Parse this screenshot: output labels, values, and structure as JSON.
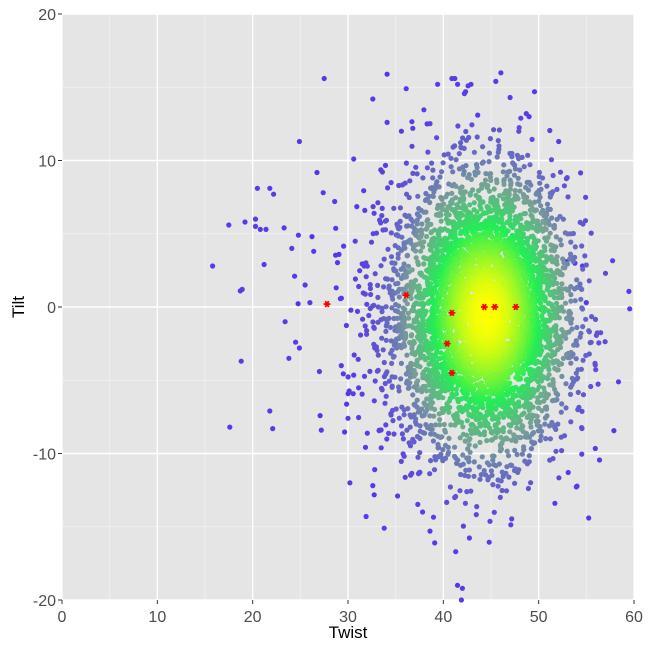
{
  "chart_data": {
    "type": "scatter",
    "title": "",
    "xlabel": "Twist",
    "ylabel": "Tilt",
    "xlim": [
      0,
      60
    ],
    "ylim": [
      -20,
      20
    ],
    "x_ticks": [
      0,
      10,
      20,
      30,
      40,
      50,
      60
    ],
    "y_ticks": [
      -20,
      -10,
      0,
      10,
      20
    ],
    "grid": true,
    "legend": "none",
    "colors": {
      "panel_background": "#e5e5e5",
      "grid_major": "#ffffff",
      "grid_minor": "#f2f2f2",
      "density_low": "#5533ee",
      "density_mid": "#22ee55",
      "density_high": "#ffff00",
      "highlight": "#ff0000"
    },
    "distribution": {
      "x_center": 44.5,
      "x_spread": 4.2,
      "y_center": -0.5,
      "y_spread": 4.6,
      "point_count": 5000,
      "note_color_by_density": true
    },
    "outlier_points": [
      [
        15.8,
        2.8
      ],
      [
        17.5,
        5.6
      ],
      [
        17.6,
        -8.2
      ],
      [
        18.7,
        1.1
      ],
      [
        18.9,
        1.2
      ],
      [
        18.8,
        -3.7
      ],
      [
        19.2,
        5.8
      ],
      [
        20.3,
        5.5
      ],
      [
        20.3,
        6.0
      ],
      [
        20.5,
        8.1
      ],
      [
        20.8,
        5.3
      ],
      [
        21.2,
        2.9
      ],
      [
        21.4,
        5.3
      ],
      [
        21.8,
        8.1
      ],
      [
        22.2,
        7.7
      ],
      [
        21.8,
        -7.1
      ],
      [
        22.1,
        -8.3
      ],
      [
        23.3,
        5.4
      ],
      [
        23.4,
        -1.0
      ],
      [
        23.8,
        -3.5
      ],
      [
        24.1,
        4.0
      ],
      [
        24.4,
        2.1
      ],
      [
        24.5,
        -2.4
      ],
      [
        24.9,
        -2.8
      ],
      [
        24.8,
        4.9
      ],
      [
        24.9,
        11.3
      ],
      [
        25.5,
        1.5
      ],
      [
        26.0,
        0.3
      ],
      [
        26.4,
        3.8
      ],
      [
        27.0,
        -4.4
      ],
      [
        27.2,
        -8.4
      ],
      [
        27.4,
        7.8
      ],
      [
        27.5,
        15.6
      ],
      [
        28.6,
        7.2
      ],
      [
        29.3,
        -4.0
      ],
      [
        30.0,
        -7.6
      ],
      [
        30.2,
        -12.0
      ],
      [
        30.6,
        10.1
      ],
      [
        31.9,
        -14.3
      ],
      [
        32.6,
        14.2
      ],
      [
        32.8,
        -11.1
      ],
      [
        33.8,
        -15.1
      ],
      [
        34.1,
        12.6
      ],
      [
        35.2,
        -12.9
      ],
      [
        35.6,
        12.0
      ],
      [
        36.1,
        14.9
      ],
      [
        36.8,
        12.2
      ],
      [
        38.3,
        12.5
      ],
      [
        38.6,
        -15.3
      ],
      [
        39.4,
        15.2
      ],
      [
        40.9,
        15.6
      ],
      [
        41.2,
        15.6
      ],
      [
        41.5,
        15.2
      ],
      [
        41.3,
        -16.7
      ],
      [
        42.0,
        -19.2
      ],
      [
        41.9,
        -20.0
      ],
      [
        42.6,
        15.1
      ],
      [
        42.9,
        15.2
      ],
      [
        43.6,
        13.1
      ],
      [
        45.5,
        15.4
      ],
      [
        47.0,
        14.3
      ],
      [
        48.7,
        13.2
      ],
      [
        49.0,
        13.0
      ],
      [
        52.1,
        11.3
      ],
      [
        52.9,
        3.1
      ],
      [
        53.8,
        3.0
      ],
      [
        54.6,
        2.8
      ],
      [
        55.0,
        0.3
      ],
      [
        53.1,
        -11.3
      ],
      [
        51.7,
        -13.4
      ]
    ],
    "series": [
      {
        "x": [
          27.8,
          36.1,
          40.9,
          40.4,
          40.9,
          44.3,
          45.4,
          47.6
        ],
        "y": [
          0.2,
          0.8,
          -0.4,
          -2.5,
          -4.5,
          0.0,
          0.0,
          0.0
        ]
      }
    ]
  }
}
